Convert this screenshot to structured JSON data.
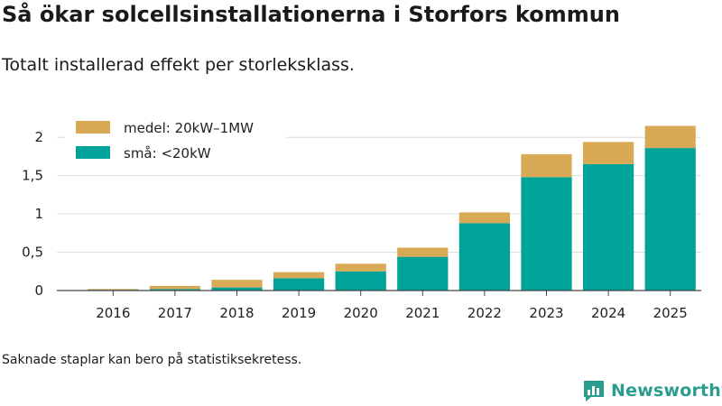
{
  "title": "Så ökar solcellsinstallationerna i Storfors kommun",
  "subtitle": "Totalt installerad effekt per storleksklass.",
  "footnote": "Saknade staplar kan bero på statistiksekretess.",
  "brand": {
    "name": "Newsworthy",
    "color": "#2a9d8f"
  },
  "chart_data": {
    "type": "bar",
    "stacked": true,
    "categories": [
      "2016",
      "2017",
      "2018",
      "2019",
      "2020",
      "2021",
      "2022",
      "2023",
      "2024",
      "2025"
    ],
    "series": [
      {
        "name": "små: <20kW",
        "color": "#00a398",
        "values": [
          0.01,
          0.02,
          0.04,
          0.16,
          0.25,
          0.44,
          0.88,
          1.48,
          1.65,
          1.86
        ]
      },
      {
        "name": "medel: 20kW–1MW",
        "color": "#d9aa55",
        "values": [
          0.01,
          0.04,
          0.1,
          0.08,
          0.1,
          0.12,
          0.14,
          0.3,
          0.29,
          0.29
        ]
      }
    ],
    "yticks": [
      0,
      0.5,
      1,
      1.5,
      2
    ],
    "ytick_labels": [
      "0",
      "0,5",
      "1",
      "1,5",
      "2"
    ],
    "ylim": [
      0,
      2.25
    ],
    "grid": true,
    "legend": "top-left"
  }
}
